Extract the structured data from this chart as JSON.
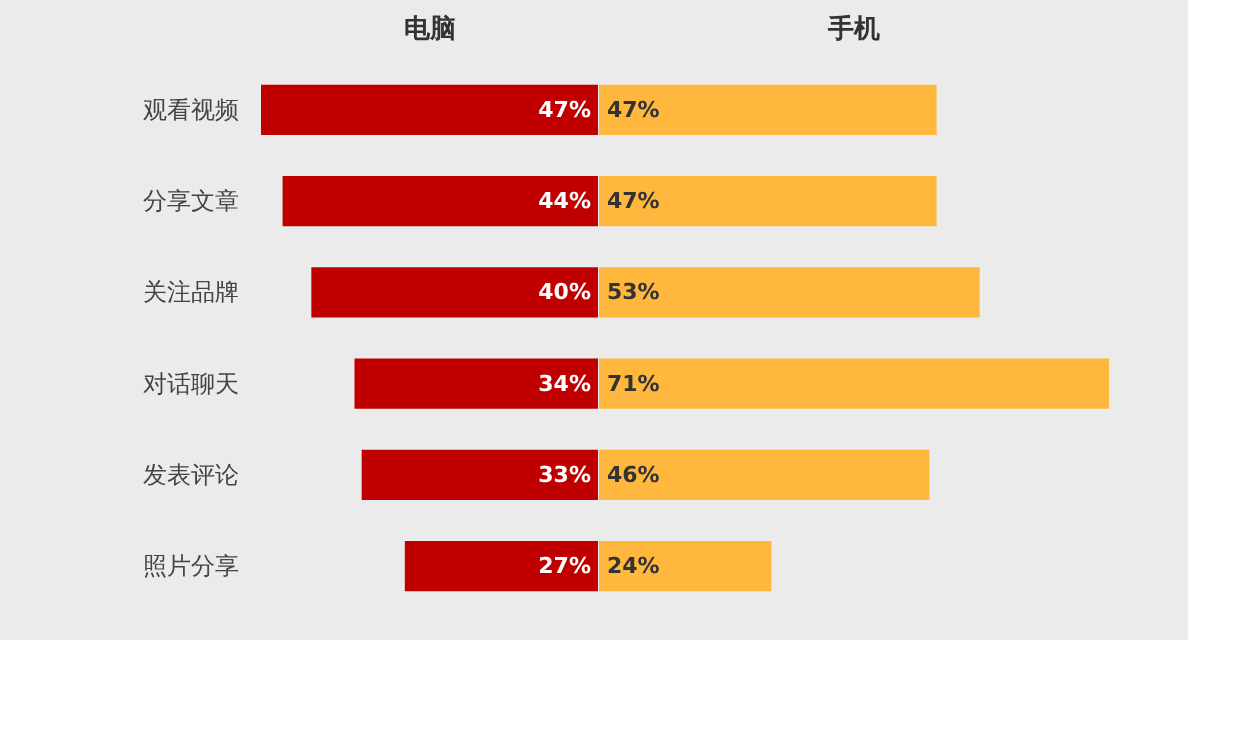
{
  "chart_data": [
    {
      "type": "bar",
      "orientation": "horizontal",
      "title": "电脑",
      "categories": [
        "观看视频",
        "分享文章",
        "关注品牌",
        "对话聊天",
        "发表评论",
        "照片分享"
      ],
      "values": [
        47,
        44,
        40,
        34,
        33,
        27
      ],
      "value_labels": [
        "47%",
        "44%",
        "40%",
        "34%",
        "33%",
        "27%"
      ],
      "color": "#c00000",
      "xlim": [
        47,
        0
      ],
      "tick_labels": "y"
    },
    {
      "type": "bar",
      "orientation": "horizontal",
      "title": "手机",
      "categories": [
        null,
        null,
        null,
        null,
        null,
        null
      ],
      "values": [
        47,
        47,
        53,
        71,
        46,
        24
      ],
      "value_labels": [
        "47%",
        "47%",
        "53%",
        "71%",
        "46%",
        "24%"
      ],
      "color": "#ffb83d",
      "xlim": [
        0,
        71
      ],
      "tick_labels": false
    }
  ]
}
